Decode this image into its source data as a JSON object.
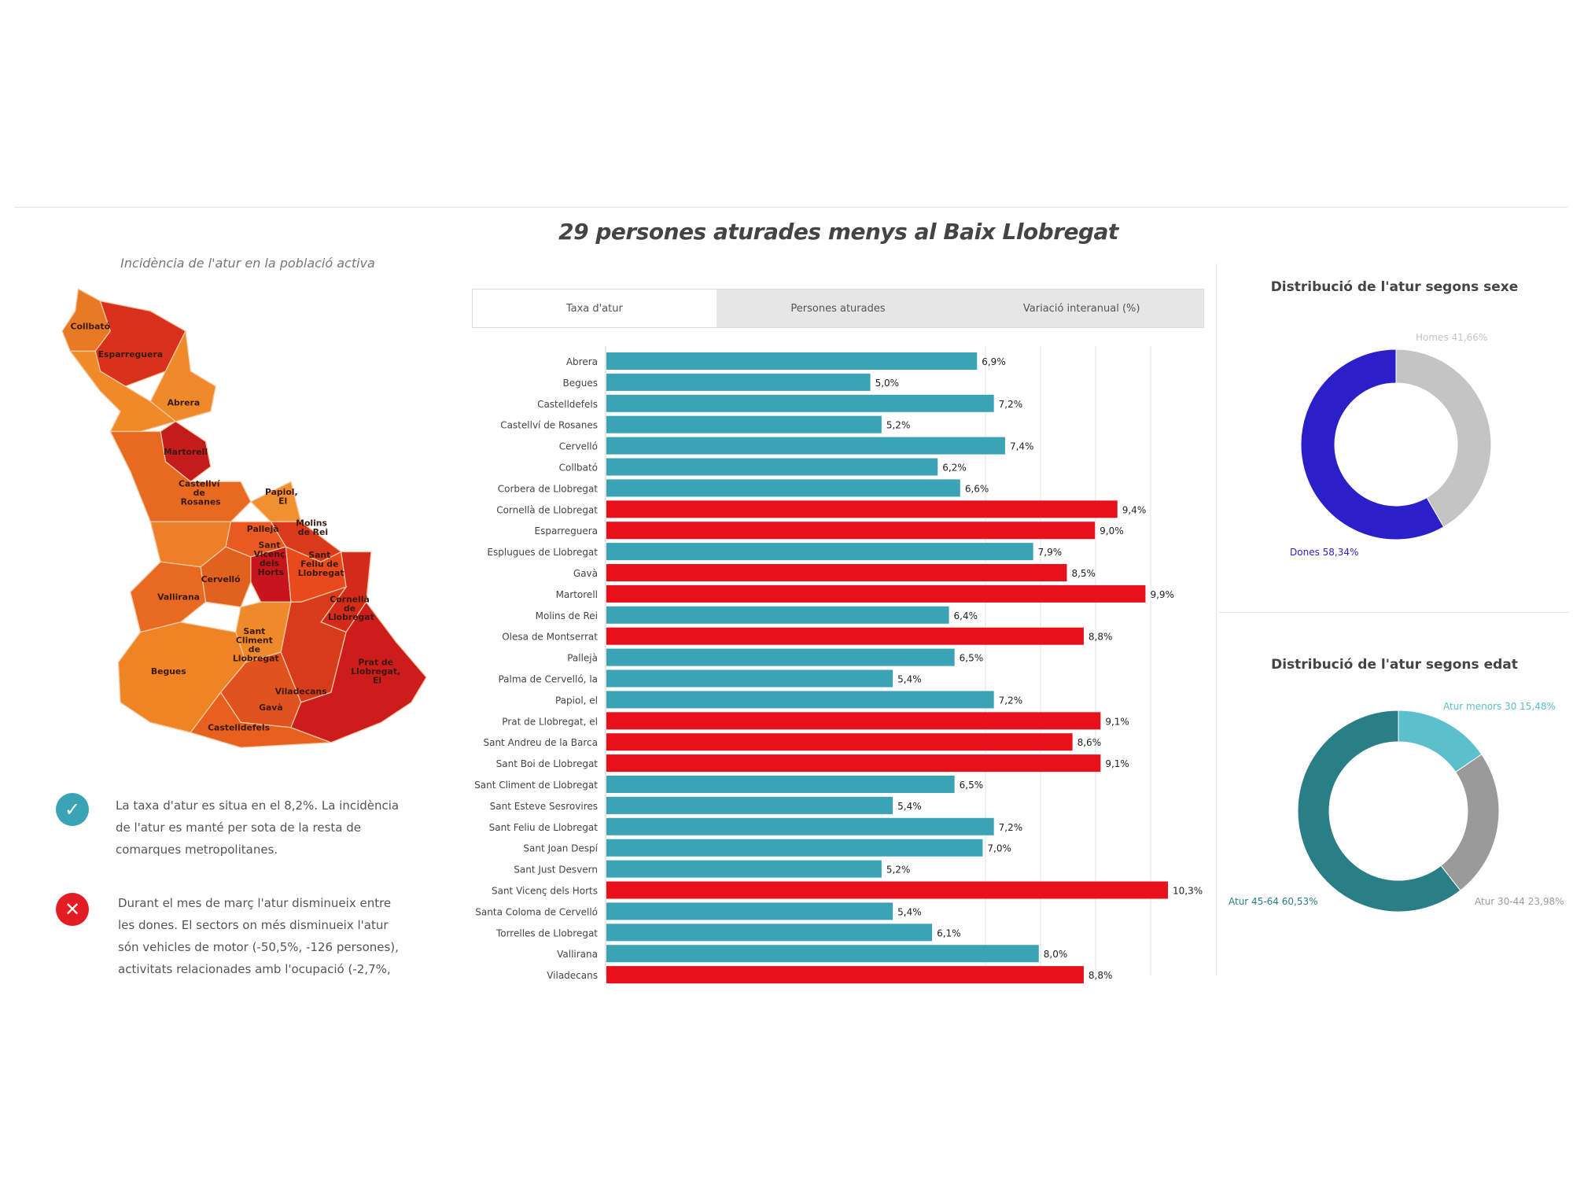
{
  "header": {
    "title": "29 persones aturades menys al Baix Llobregat"
  },
  "map": {
    "subtitle": "Incidència de l'atur en la població activa",
    "regions": [
      {
        "name": "Collbató",
        "color": "#e87a25"
      },
      {
        "name": "Esparreguera",
        "color": "#d8321c"
      },
      {
        "name": "Abrera",
        "color": "#ef8a2a"
      },
      {
        "name": "",
        "color": "#f08a28"
      },
      {
        "name": "Martorell",
        "color": "#c41c1c"
      },
      {
        "name": "Castellví de Rosanes",
        "color": "#e86a20"
      },
      {
        "name": "Papiol, El",
        "color": "#f09030"
      },
      {
        "name": "Pallejà",
        "color": "#e85a22"
      },
      {
        "name": "Molins de Rei",
        "color": "#d93a1c"
      },
      {
        "name": "",
        "color": "#ef7e28"
      },
      {
        "name": "Sant Vicenç dels Horts",
        "color": "#c8141c"
      },
      {
        "name": "Sant Feliu de Llobregat",
        "color": "#e84a1e"
      },
      {
        "name": "Cervelló",
        "color": "#e0621e"
      },
      {
        "name": "Vallirana",
        "color": "#e86a22"
      },
      {
        "name": "Cornellà de Llobregat",
        "color": "#d42a1c"
      },
      {
        "name": "Sant Climent de Llobregat",
        "color": "#ef8a2a"
      },
      {
        "name": "Begues",
        "color": "#ef8424"
      },
      {
        "name": "Viladecans",
        "color": "#d83a1c"
      },
      {
        "name": "Gavà",
        "color": "#e0521e"
      },
      {
        "name": "Castelldefels",
        "color": "#e8601e"
      },
      {
        "name": "Prat de Llobregat, El",
        "color": "#cc1c1c"
      }
    ]
  },
  "notes": [
    {
      "icon": "check-icon",
      "color": "#3aa3b5",
      "lines": [
        "La taxa d'atur es situa en el 8,2%. La incidència",
        "de l'atur es manté per sota de la resta de",
        "comarques metropolitanes."
      ]
    },
    {
      "icon": "cross-icon",
      "color": "#e31b23",
      "lines": [
        "Durant el mes de març l'atur disminueix entre",
        "les dones. El sectors on més disminueix l'atur",
        "són vehicles de motor (-50,5%, -126 persones),",
        "activitats relacionades amb l'ocupació (-2,7%,"
      ]
    }
  ],
  "tabs": [
    {
      "label": "Taxa d'atur",
      "active": true
    },
    {
      "label": "Persones aturades",
      "active": false
    },
    {
      "label": "Variació interanual (%)",
      "active": false
    }
  ],
  "colors": {
    "below": "#3aa3b5",
    "above": "#e8101a"
  },
  "chart_data": [
    {
      "type": "bar",
      "orientation": "horizontal",
      "categories": [
        "Abrera",
        "Begues",
        "Castelldefels",
        "Castellví de Rosanes",
        "Cervelló",
        "Collbató",
        "Corbera de Llobregat",
        "Cornellà de Llobregat",
        "Esparreguera",
        "Esplugues de Llobregat",
        "Gavà",
        "Martorell",
        "Molins de Rei",
        "Olesa de Montserrat",
        "Pallejà",
        "Palma de Cervelló, la",
        "Papiol, el",
        "Prat de Llobregat, el",
        "Sant Andreu de la Barca",
        "Sant Boi de Llobregat",
        "Sant Climent de Llobregat",
        "Sant Esteve Sesrovires",
        "Sant Feliu de Llobregat",
        "Sant Joan Despí",
        "Sant Just Desvern",
        "Sant Vicenç dels Horts",
        "Santa Coloma de Cervelló",
        "Torrelles de Llobregat",
        "Vallirana",
        "Viladecans"
      ],
      "values": [
        6.9,
        5.0,
        7.2,
        5.2,
        7.4,
        6.2,
        6.6,
        9.4,
        9.0,
        7.9,
        8.5,
        9.9,
        6.4,
        8.8,
        6.5,
        5.4,
        7.2,
        9.1,
        8.6,
        9.1,
        6.5,
        5.4,
        7.2,
        7.0,
        5.2,
        10.3,
        5.4,
        6.1,
        8.0,
        8.8
      ],
      "labels": [
        "6,9%",
        "5,0%",
        "7,2%",
        "5,2%",
        "7,4%",
        "6,2%",
        "6,6%",
        "9,4%",
        "9,0%",
        "7,9%",
        "8,5%",
        "9,9%",
        "6,4%",
        "8,8%",
        "6,5%",
        "5,4%",
        "7,2%",
        "9,1%",
        "8,6%",
        "9,1%",
        "6,5%",
        "5,4%",
        "7,2%",
        "7,0%",
        "5,2%",
        "10,3%",
        "5,4%",
        "6,1%",
        "8,0%",
        "8,8%"
      ],
      "highlight": [
        false,
        false,
        false,
        false,
        false,
        false,
        false,
        true,
        true,
        false,
        true,
        true,
        false,
        true,
        false,
        false,
        false,
        true,
        true,
        true,
        false,
        false,
        false,
        false,
        false,
        true,
        false,
        false,
        false,
        true
      ],
      "grid": true
    },
    {
      "type": "pie",
      "donut": true,
      "title": "Distribució de l'atur segons sexe",
      "slices": [
        {
          "label": "Homes 41,66%",
          "value": 41.66,
          "color": "#c4c4c4"
        },
        {
          "label": "Dones 58,34%",
          "value": 58.34,
          "color": "#2a1fc8"
        }
      ]
    },
    {
      "type": "pie",
      "donut": true,
      "title": "Distribució de l'atur segons edat",
      "slices": [
        {
          "label": "Atur menors 30 15,48%",
          "value": 15.48,
          "color": "#5bbfcc"
        },
        {
          "label": "Atur 30-44 23,98%",
          "value": 23.98,
          "color": "#9a9a9a"
        },
        {
          "label": "Atur 45-64 60,53%",
          "value": 60.53,
          "color": "#2a7f87"
        }
      ]
    }
  ]
}
